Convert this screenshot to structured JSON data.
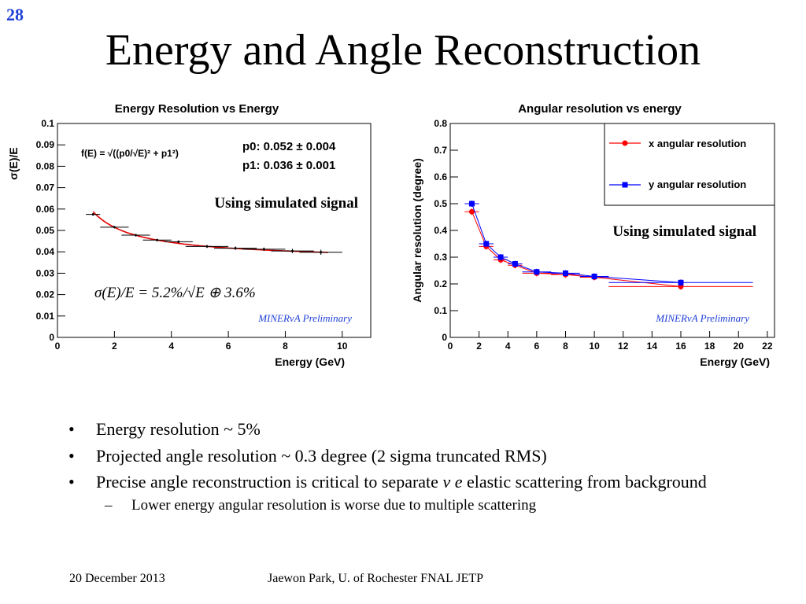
{
  "slide_number": "28",
  "title": "Energy and Angle Reconstruction",
  "chart_data": [
    {
      "type": "scatter",
      "title": "Energy Resolution vs Energy",
      "xlabel": "Energy (GeV)",
      "ylabel": "σ(E)/E",
      "xlim": [
        0,
        11
      ],
      "ylim": [
        0,
        0.1
      ],
      "x_ticks": [
        "0",
        "2",
        "4",
        "6",
        "8",
        "10"
      ],
      "y_ticks": [
        "0",
        "0.01",
        "0.02",
        "0.03",
        "0.04",
        "0.05",
        "0.06",
        "0.07",
        "0.08",
        "0.09",
        "0.1"
      ],
      "fit_formula": "f(E) = √((p0/√E)² + p1²)",
      "fit_params": [
        {
          "label": "p0",
          "value": "0.052 ± 0.004"
        },
        {
          "label": "p1",
          "value": "0.036 ± 0.001"
        }
      ],
      "fit_p0": 0.052,
      "fit_p1": 0.036,
      "annotation": "Using simulated signal",
      "formula_label": "σ(E)/E = 5.2%/√E ⊕ 3.6%",
      "watermark": "MINERvA Preliminary",
      "series": [
        {
          "x": [
            1.25,
            2.0,
            2.75,
            3.5,
            4.25,
            5.25,
            6.25,
            7.25,
            8.25,
            9.25
          ],
          "y": [
            0.0575,
            0.0515,
            0.0478,
            0.0455,
            0.0447,
            0.0425,
            0.0417,
            0.0412,
            0.0404,
            0.0398
          ],
          "xerr": [
            0.25,
            0.5,
            0.5,
            0.5,
            0.5,
            0.75,
            0.75,
            0.75,
            0.75,
            0.75
          ],
          "yerr": [
            0.0006,
            0.0006,
            0.0006,
            0.0006,
            0.0006,
            0.0007,
            0.0008,
            0.0008,
            0.001,
            0.0012
          ]
        }
      ],
      "grid": false,
      "colors": {
        "fit": "#e00000",
        "points": "#000000"
      }
    },
    {
      "type": "line",
      "title": "Angular resolution vs energy",
      "xlabel": "Energy (GeV)",
      "ylabel": "Angular resolution (degree)",
      "xlim": [
        0,
        22.5
      ],
      "ylim": [
        0,
        0.8
      ],
      "x_ticks": [
        "0",
        "2",
        "4",
        "6",
        "8",
        "10",
        "12",
        "14",
        "16",
        "18",
        "20",
        "22"
      ],
      "y_ticks": [
        "0",
        "0.1",
        "0.2",
        "0.3",
        "0.4",
        "0.5",
        "0.6",
        "0.7",
        "0.8"
      ],
      "annotation": "Using simulated signal",
      "watermark": "MINERvA Preliminary",
      "legend_position": "top-right",
      "series": [
        {
          "name": "x angular resolution",
          "color": "#ff0000",
          "marker": "circle",
          "x": [
            1.5,
            2.5,
            3.5,
            4.5,
            6.0,
            8.0,
            10.0,
            16.0
          ],
          "y": [
            0.47,
            0.34,
            0.29,
            0.27,
            0.24,
            0.235,
            0.225,
            0.19
          ],
          "xerr": [
            0.5,
            0.5,
            0.5,
            0.5,
            1.0,
            1.0,
            1.0,
            5.0
          ]
        },
        {
          "name": "y angular resolution",
          "color": "#0000ff",
          "marker": "square",
          "x": [
            1.5,
            2.5,
            3.5,
            4.5,
            6.0,
            8.0,
            10.0,
            16.0
          ],
          "y": [
            0.5,
            0.35,
            0.3,
            0.275,
            0.245,
            0.24,
            0.228,
            0.205
          ],
          "xerr": [
            0.5,
            0.5,
            0.5,
            0.5,
            1.0,
            1.0,
            1.0,
            5.0
          ]
        }
      ],
      "grid": false
    }
  ],
  "bullets": [
    {
      "text": "Energy resolution ~ 5%"
    },
    {
      "text": "Projected angle resolution ~ 0.3 degree (2 sigma truncated RMS)"
    },
    {
      "text_before": "Precise angle reconstruction is critical to separate ",
      "text_italic": "ν e",
      "text_after": " elastic scattering from background"
    }
  ],
  "sub_bullets": [
    {
      "text": "Lower energy angular resolution is worse due to multiple scattering"
    }
  ],
  "footer": {
    "date": "20 December 2013",
    "author": "Jaewon Park, U. of Rochester  FNAL JETP"
  }
}
